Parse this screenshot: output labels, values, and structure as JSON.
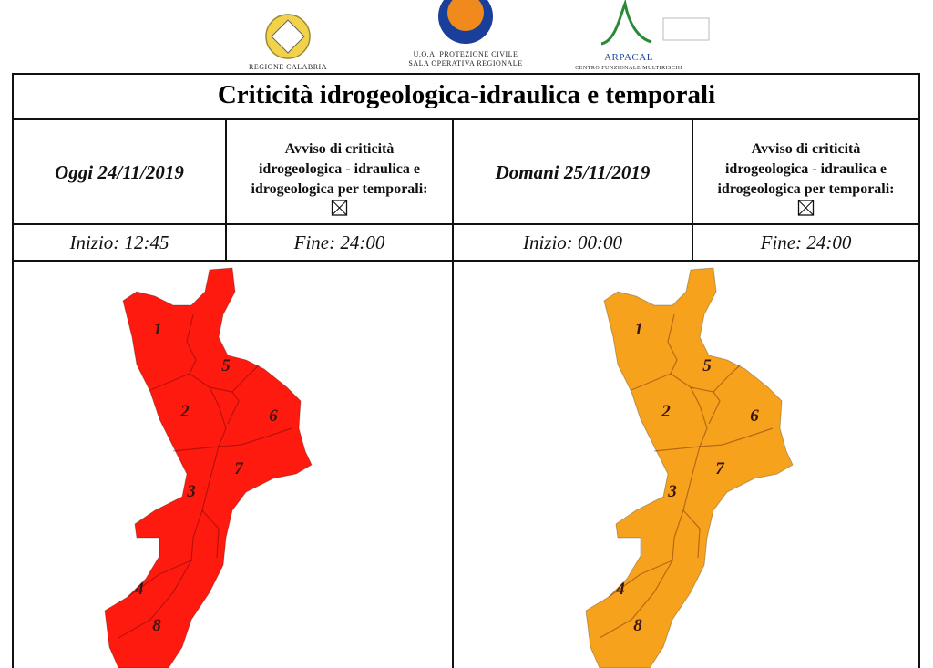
{
  "header": {
    "logos": [
      {
        "lines": [
          "REGIONE CALABRIA"
        ]
      },
      {
        "lines": [
          "U.O.A. PROTEZIONE CIVILE",
          "SALA OPERATIVA REGIONALE"
        ]
      },
      {
        "lines": [
          "ARPACAL",
          "CENTRO FUNZIONALE MULTIRISCHI"
        ]
      }
    ]
  },
  "title": "Criticità idrogeologica-idraulica e temporali",
  "days": [
    {
      "date": "Oggi 24/11/2019",
      "notice": [
        "Avviso di criticità",
        "idrogeologica - idraulica e",
        "idrogeologica per temporali:"
      ],
      "start": "Inizio: 12:45",
      "end": "Fine: 24:00",
      "color": "#ff1a10",
      "zones": [
        "1",
        "5",
        "2",
        "6",
        "7",
        "3",
        "4",
        "8"
      ]
    },
    {
      "date": "Domani 25/11/2019",
      "notice": [
        "Avviso di criticità",
        "idrogeologica - idraulica e",
        "idrogeologica per temporali:"
      ],
      "start": "Inizio: 00:00",
      "end": "Fine: 24:00",
      "color": "#f7a21c",
      "zones": [
        "1",
        "5",
        "2",
        "6",
        "7",
        "3",
        "4",
        "8"
      ]
    }
  ]
}
